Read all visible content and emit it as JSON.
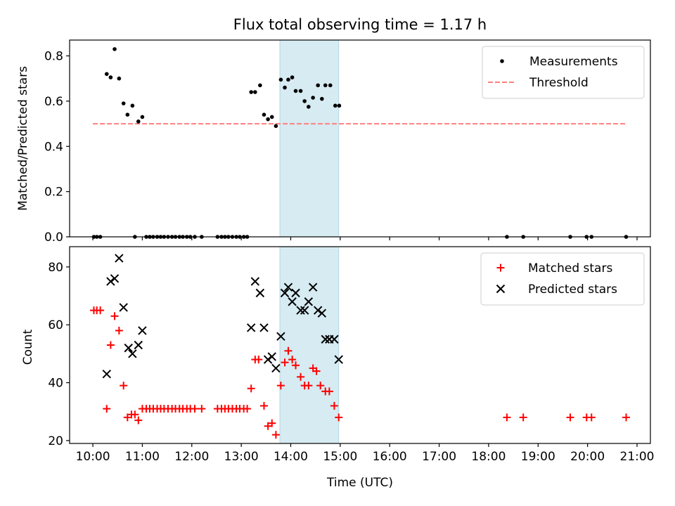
{
  "chart_data": [
    {
      "type": "scatter",
      "title": "Flux total observing time = 1.17 h",
      "ylabel": "Matched/Predicted stars",
      "xlabel": "",
      "xlim": [
        9.53,
        21.27
      ],
      "ylim": [
        0,
        0.87
      ],
      "yticks": [
        0.0,
        0.2,
        0.4,
        0.6,
        0.8
      ],
      "ytick_labels": [
        "0.0",
        "0.2",
        "0.4",
        "0.6",
        "0.8"
      ],
      "grid": false,
      "legend": "top-right",
      "highlight_span": [
        13.78,
        14.97
      ],
      "threshold": {
        "name": "Threshold",
        "y": 0.5,
        "x": [
          10.0,
          20.8
        ],
        "color": "#ff7f7f"
      },
      "series": [
        {
          "name": "Measurements",
          "color": "#000000",
          "x": [
            10.02,
            10.08,
            10.15,
            10.28,
            10.36,
            10.44,
            10.53,
            10.62,
            10.7,
            10.8,
            10.92,
            11.0,
            10.85,
            11.08,
            11.15,
            11.22,
            11.3,
            11.37,
            11.44,
            11.52,
            11.6,
            11.67,
            11.75,
            11.82,
            11.9,
            11.97,
            12.06,
            12.2,
            12.52,
            12.6,
            12.67,
            12.74,
            12.82,
            12.9,
            12.97,
            13.05,
            13.12,
            13.2,
            13.28,
            13.38,
            13.46,
            13.54,
            13.62,
            13.7,
            13.8,
            13.88,
            13.95,
            14.03,
            14.1,
            14.2,
            14.28,
            14.36,
            14.45,
            14.55,
            14.63,
            14.7,
            14.8,
            14.9,
            14.98,
            18.37,
            18.7,
            19.65,
            19.98,
            20.08,
            20.78
          ],
          "y": [
            0,
            0,
            0,
            0.72,
            0.705,
            0.83,
            0.7,
            0.59,
            0.54,
            0.58,
            0.51,
            0.53,
            0,
            0,
            0,
            0,
            0,
            0,
            0,
            0,
            0,
            0,
            0,
            0,
            0,
            0,
            0,
            0,
            0,
            0,
            0,
            0,
            0,
            0,
            0,
            0,
            0,
            0.64,
            0.64,
            0.67,
            0.54,
            0.52,
            0.53,
            0.49,
            0.695,
            0.66,
            0.695,
            0.705,
            0.645,
            0.645,
            0.6,
            0.575,
            0.615,
            0.67,
            0.61,
            0.67,
            0.67,
            0.58,
            0.58,
            0,
            0,
            0,
            0,
            0,
            0
          ]
        }
      ]
    },
    {
      "type": "scatter",
      "title": "",
      "ylabel": "Count",
      "xlabel": "Time (UTC)",
      "xlim": [
        9.53,
        21.27
      ],
      "ylim": [
        19,
        87
      ],
      "yticks": [
        20,
        40,
        60,
        80
      ],
      "ytick_labels": [
        "20",
        "40",
        "60",
        "80"
      ],
      "xticks": [
        10,
        11,
        12,
        13,
        14,
        15,
        16,
        17,
        18,
        19,
        20,
        21
      ],
      "xtick_labels": [
        "10:00",
        "11:00",
        "12:00",
        "13:00",
        "14:00",
        "15:00",
        "16:00",
        "17:00",
        "18:00",
        "19:00",
        "20:00",
        "21:00"
      ],
      "grid": false,
      "legend": "top-right",
      "highlight_span": [
        13.78,
        14.97
      ],
      "series": [
        {
          "name": "Matched stars",
          "marker": "plus",
          "color": "#ff0000",
          "x": [
            10.02,
            10.08,
            10.15,
            10.28,
            10.36,
            10.44,
            10.53,
            10.62,
            10.7,
            10.78,
            10.85,
            10.92,
            11.0,
            11.08,
            11.15,
            11.22,
            11.3,
            11.37,
            11.44,
            11.52,
            11.6,
            11.67,
            11.75,
            11.82,
            11.9,
            11.97,
            12.06,
            12.2,
            12.52,
            12.6,
            12.67,
            12.74,
            12.82,
            12.9,
            12.97,
            13.05,
            13.12,
            13.2,
            13.28,
            13.35,
            13.46,
            13.54,
            13.62,
            13.7,
            13.8,
            13.88,
            13.95,
            14.03,
            14.1,
            14.2,
            14.28,
            14.36,
            14.45,
            14.52,
            14.6,
            14.7,
            14.78,
            14.88,
            14.97,
            18.37,
            18.7,
            19.65,
            19.98,
            20.08,
            20.78
          ],
          "y": [
            65,
            65,
            65,
            31,
            53,
            63,
            58,
            39,
            28,
            29,
            29,
            27,
            31,
            31,
            31,
            31,
            31,
            31,
            31,
            31,
            31,
            31,
            31,
            31,
            31,
            31,
            31,
            31,
            31,
            31,
            31,
            31,
            31,
            31,
            31,
            31,
            31,
            38,
            48,
            48,
            32,
            25,
            26,
            22,
            39,
            47,
            51,
            48,
            46,
            42,
            39,
            39,
            45,
            44,
            39,
            37,
            37,
            32,
            28,
            28,
            28,
            28,
            28,
            28,
            28
          ]
        },
        {
          "name": "Predicted stars",
          "marker": "x",
          "color": "#000000",
          "x": [
            10.28,
            10.36,
            10.44,
            10.53,
            10.62,
            10.72,
            10.8,
            10.92,
            11.0,
            13.2,
            13.28,
            13.38,
            13.46,
            13.54,
            13.62,
            13.7,
            13.8,
            13.88,
            13.95,
            14.03,
            14.1,
            14.2,
            14.28,
            14.36,
            14.45,
            14.55,
            14.63,
            14.7,
            14.78,
            14.88,
            14.97
          ],
          "y": [
            43,
            75,
            76,
            83,
            66,
            52,
            50,
            53,
            58,
            59,
            75,
            71,
            59,
            48,
            49,
            45,
            56,
            71,
            73,
            68,
            71,
            65,
            65,
            68,
            73,
            65,
            64,
            55,
            55,
            55,
            48
          ]
        }
      ]
    }
  ]
}
